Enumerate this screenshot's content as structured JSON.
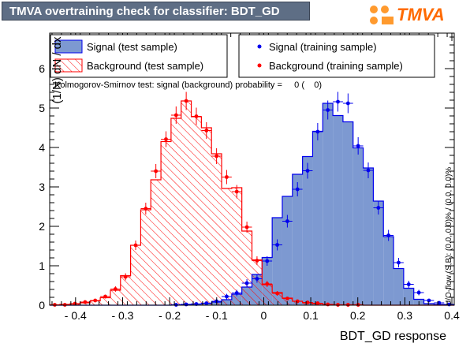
{
  "title": "TMVA overtraining check for classifier: BDT_GD",
  "logo": {
    "text": "TMVA",
    "icon": "tmva-logo-icon"
  },
  "colors": {
    "signal_fill": "#7d99d1",
    "signal_line": "#0000ee",
    "background_line": "#ff0000",
    "signal_points": "#0000ee",
    "background_points": "#ff0000"
  },
  "legend": {
    "signal_test": "Signal (test sample)",
    "background_test": "Background (test sample)",
    "signal_train": "Signal (training sample)",
    "background_train": "Background (training sample)"
  },
  "ks_text": "Kolmogorov-Smirnov test: signal (background) probability =     0 (    0)",
  "overflow_text": "U/O-flow (S,B): (0.0, 0.0)% / (0.0, 0.0)%",
  "chart_data": {
    "type": "histogram",
    "xlabel": "BDT_GD response",
    "ylabel": "(1/N) dN / dx",
    "xlim": [
      -0.455,
      0.405
    ],
    "ylim": [
      0,
      6.9
    ],
    "x_ticks": [
      -0.4,
      -0.3,
      -0.2,
      -0.1,
      0,
      0.1,
      0.2,
      0.3,
      0.4
    ],
    "x_tick_labels": [
      "- 0.4",
      "- 0.3",
      "- 0.2",
      "- 0.1",
      "0",
      "0.1",
      "0.2",
      "0.3",
      "0.4"
    ],
    "y_ticks": [
      0,
      1,
      2,
      3,
      4,
      5,
      6
    ],
    "y_tick_labels": [
      "0",
      "1",
      "2",
      "3",
      "4",
      "5",
      "6"
    ],
    "bin_edges_start": -0.455,
    "bin_width": 0.0215,
    "series": [
      {
        "name": "Signal (test sample)",
        "style": "filled histogram",
        "values": [
          0,
          0,
          0,
          0,
          0,
          0,
          0,
          0,
          0,
          0,
          0,
          0,
          0.01,
          0.02,
          0.03,
          0.05,
          0.08,
          0.14,
          0.28,
          0.46,
          0.78,
          1.21,
          2.22,
          2.76,
          3.32,
          3.77,
          4.41,
          5.12,
          4.81,
          4.65,
          3.99,
          3.48,
          2.64,
          1.74,
          0.93,
          0.43,
          0.15,
          0.04,
          0.02,
          0.01
        ]
      },
      {
        "name": "Background (test sample)",
        "style": "hatched histogram",
        "values": [
          0.01,
          0.02,
          0.03,
          0.06,
          0.11,
          0.19,
          0.38,
          0.75,
          1.52,
          2.42,
          3.18,
          4.15,
          4.74,
          5.18,
          4.78,
          4.5,
          3.84,
          2.96,
          2.98,
          1.88,
          1.15,
          0.52,
          0.32,
          0.18,
          0.1,
          0.06,
          0.04,
          0.02,
          0.01,
          0.01,
          0.01,
          0,
          0,
          0,
          0,
          0,
          0,
          0,
          0,
          0
        ]
      },
      {
        "name": "Signal (training sample)",
        "style": "points",
        "values": [
          0,
          0,
          0,
          0,
          0,
          0,
          0,
          0,
          0,
          0,
          0,
          0,
          0.01,
          0.02,
          0.03,
          0.05,
          0.1,
          0.22,
          0.31,
          0.56,
          0.67,
          1.12,
          1.53,
          2.13,
          2.94,
          3.41,
          4.4,
          4.95,
          5.16,
          5.12,
          4.04,
          3.42,
          2.47,
          1.77,
          1.08,
          0.53,
          0.32,
          0.12,
          0.06,
          0.02
        ],
        "errors": [
          0,
          0,
          0,
          0,
          0,
          0,
          0,
          0,
          0,
          0,
          0,
          0,
          0.02,
          0.03,
          0.03,
          0.04,
          0.05,
          0.07,
          0.08,
          0.1,
          0.1,
          0.12,
          0.14,
          0.16,
          0.18,
          0.2,
          0.22,
          0.24,
          0.25,
          0.25,
          0.22,
          0.2,
          0.17,
          0.14,
          0.12,
          0.09,
          0.07,
          0.04,
          0.03,
          0.02
        ]
      },
      {
        "name": "Background (training sample)",
        "style": "points",
        "values": [
          0.01,
          0.01,
          0.04,
          0.08,
          0.12,
          0.22,
          0.41,
          0.72,
          1.52,
          2.45,
          3.4,
          4.21,
          4.82,
          5.18,
          4.79,
          4.43,
          3.78,
          3.25,
          2.88,
          1.98,
          1.13,
          0.54,
          0.3,
          0.17,
          0.1,
          0.07,
          0.05,
          0.02,
          0.01,
          0.01,
          0.01,
          0,
          0,
          0,
          0,
          0,
          0,
          0,
          0,
          0
        ],
        "errors": [
          0.01,
          0.01,
          0.02,
          0.03,
          0.04,
          0.05,
          0.07,
          0.09,
          0.12,
          0.15,
          0.18,
          0.2,
          0.22,
          0.23,
          0.22,
          0.21,
          0.2,
          0.18,
          0.17,
          0.14,
          0.11,
          0.08,
          0.06,
          0.04,
          0.03,
          0.03,
          0.02,
          0.01,
          0.01,
          0.01,
          0.01,
          0,
          0,
          0,
          0,
          0,
          0,
          0,
          0,
          0
        ]
      }
    ]
  }
}
